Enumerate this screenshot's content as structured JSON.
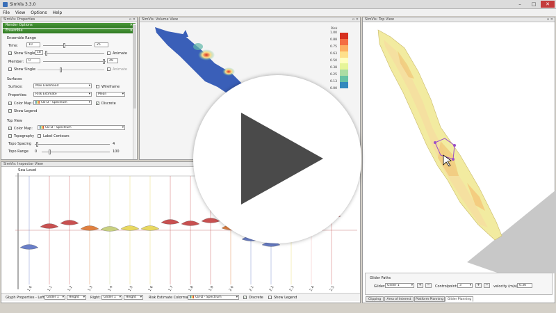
{
  "app": {
    "title": "SimVis 3.3.0"
  },
  "menu": [
    "File",
    "View",
    "Options",
    "Help"
  ],
  "window_controls": {
    "minimize": "–",
    "maximize": "□",
    "close": "✕"
  },
  "properties": {
    "title": "SimVis: Properties",
    "render_options": "Render Options",
    "ensemble": "Ensemble",
    "ensemble_range": "Ensemble Range",
    "time_label": "Time:",
    "time_min": "10",
    "time_max": "25",
    "time_level": 0.4,
    "show_single_1": "Show Single:",
    "show_single_1_value": "18",
    "animate_1": "Animate",
    "member_label": "Member:",
    "member_min": "0",
    "member_max": "49",
    "show_single_2": "Show Single:",
    "animate_2": "Animate",
    "surfaces": "Surfaces",
    "surface_label": "Surface:",
    "surface_value": "Max Likelihood",
    "wireframe": "Wireframe",
    "properties_label": "Properties:",
    "properties_value": "Risk Estimate",
    "properties_stat": "Mean",
    "color_map_label": "Color Map:",
    "color_map_value": "CB-D - Spectrum",
    "discrete": "Discrete",
    "show_legend": "Show Legend",
    "top_view": "Top View",
    "tv_color_map_label": "Color Map:",
    "tv_color_map_value": "CB-D - Spectrum",
    "topography": "Topography",
    "label_contours": "Label Contours",
    "topo_spacing": "Topo Spacing",
    "topo_spacing_value": "4",
    "topo_range": "Topo Range",
    "topo_range_min": "0",
    "topo_range_max": "100"
  },
  "volume": {
    "title": "SimVis: Volume View",
    "legend_title": "Risk",
    "legend_ticks": [
      "1.00",
      "0.88",
      "0.75",
      "0.63",
      "0.50",
      "0.38",
      "0.25",
      "0.13",
      "0.00"
    ],
    "legend_colors": [
      "#d7301f",
      "#f46d43",
      "#fdae61",
      "#fee08b",
      "#ffffbf",
      "#e6f598",
      "#abdda4",
      "#66c2a5",
      "#3288bd"
    ]
  },
  "topview": {
    "title": "SimVis: Top View"
  },
  "inspector": {
    "title": "SimVis: Inspector View",
    "sea_level": "Sea Level",
    "glyph_label": "Glyph Properties - Left:",
    "left_glider": "Glider 1",
    "left_prop": "Height",
    "right_label": "Right:",
    "right_glider": "Glider 1",
    "right_prop": "Height",
    "risk_colormap_label": "Risk Estimate Colormap:",
    "risk_colormap_value": "CB-D - Spectrum",
    "discrete": "Discrete",
    "show_legend": "Show Legend",
    "x_labels": [
      "1.0",
      "1.1",
      "1.2",
      "1.3",
      "1.4",
      "1.5",
      "1.6",
      "1.7",
      "1.8",
      "1.9",
      "2.0",
      "2.1",
      "2.2",
      "2.3",
      "2.4",
      "2.5"
    ]
  },
  "glider": {
    "group_title": "Glider Paths",
    "glider_label": "Glider:",
    "glider_value": "Glider 1",
    "add": "+",
    "remove": "−",
    "controlpoint_label": "Controlpoint:",
    "controlpoint_value": "3",
    "velocity_label": "velocity (m/s):",
    "velocity_value": "0.30",
    "tabs": [
      "Clipping",
      "Area of Interest",
      "Platform Planning",
      "Glider Planning"
    ]
  },
  "icons": {
    "dropdown": "▾",
    "check": "✓",
    "close": "✕",
    "float": "▫"
  }
}
